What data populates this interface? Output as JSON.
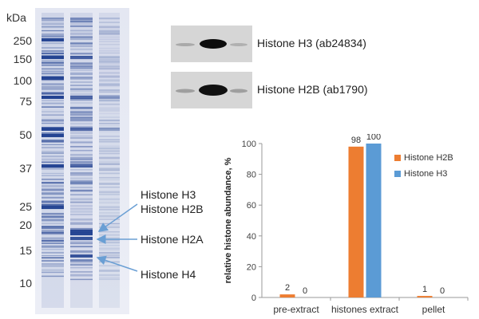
{
  "gel": {
    "unit_label": "kDa",
    "markers": [
      "250",
      "150",
      "100",
      "75",
      "50",
      "37",
      "25",
      "20",
      "15",
      "10"
    ]
  },
  "blots": [
    {
      "label": "Histone H3 (ab24834)"
    },
    {
      "label": "Histone H2B (ab1790)"
    }
  ],
  "annotations": {
    "h3": "Histone H3",
    "h2b": "Histone H2B",
    "h2a": "Histone H2A",
    "h4": "Histone H4"
  },
  "colors": {
    "h2b": "#ED7D31",
    "h3": "#5B9BD5",
    "gel_band": "#1f3f8f",
    "arrow": "#6a9fd4"
  },
  "chart_data": {
    "type": "bar",
    "categories": [
      "pre-extract",
      "histones extract",
      "pellet"
    ],
    "series": [
      {
        "name": "Histone H2B",
        "values": [
          2,
          98,
          1
        ]
      },
      {
        "name": "Histone H3",
        "values": [
          0,
          100,
          0
        ]
      }
    ],
    "title": "",
    "xlabel": "",
    "ylabel": "relative histone abundance, %",
    "ylim": [
      0,
      100
    ],
    "yticks": [
      "0",
      "20",
      "40",
      "60",
      "80",
      "100"
    ],
    "grid": false,
    "legend": "top-right"
  }
}
